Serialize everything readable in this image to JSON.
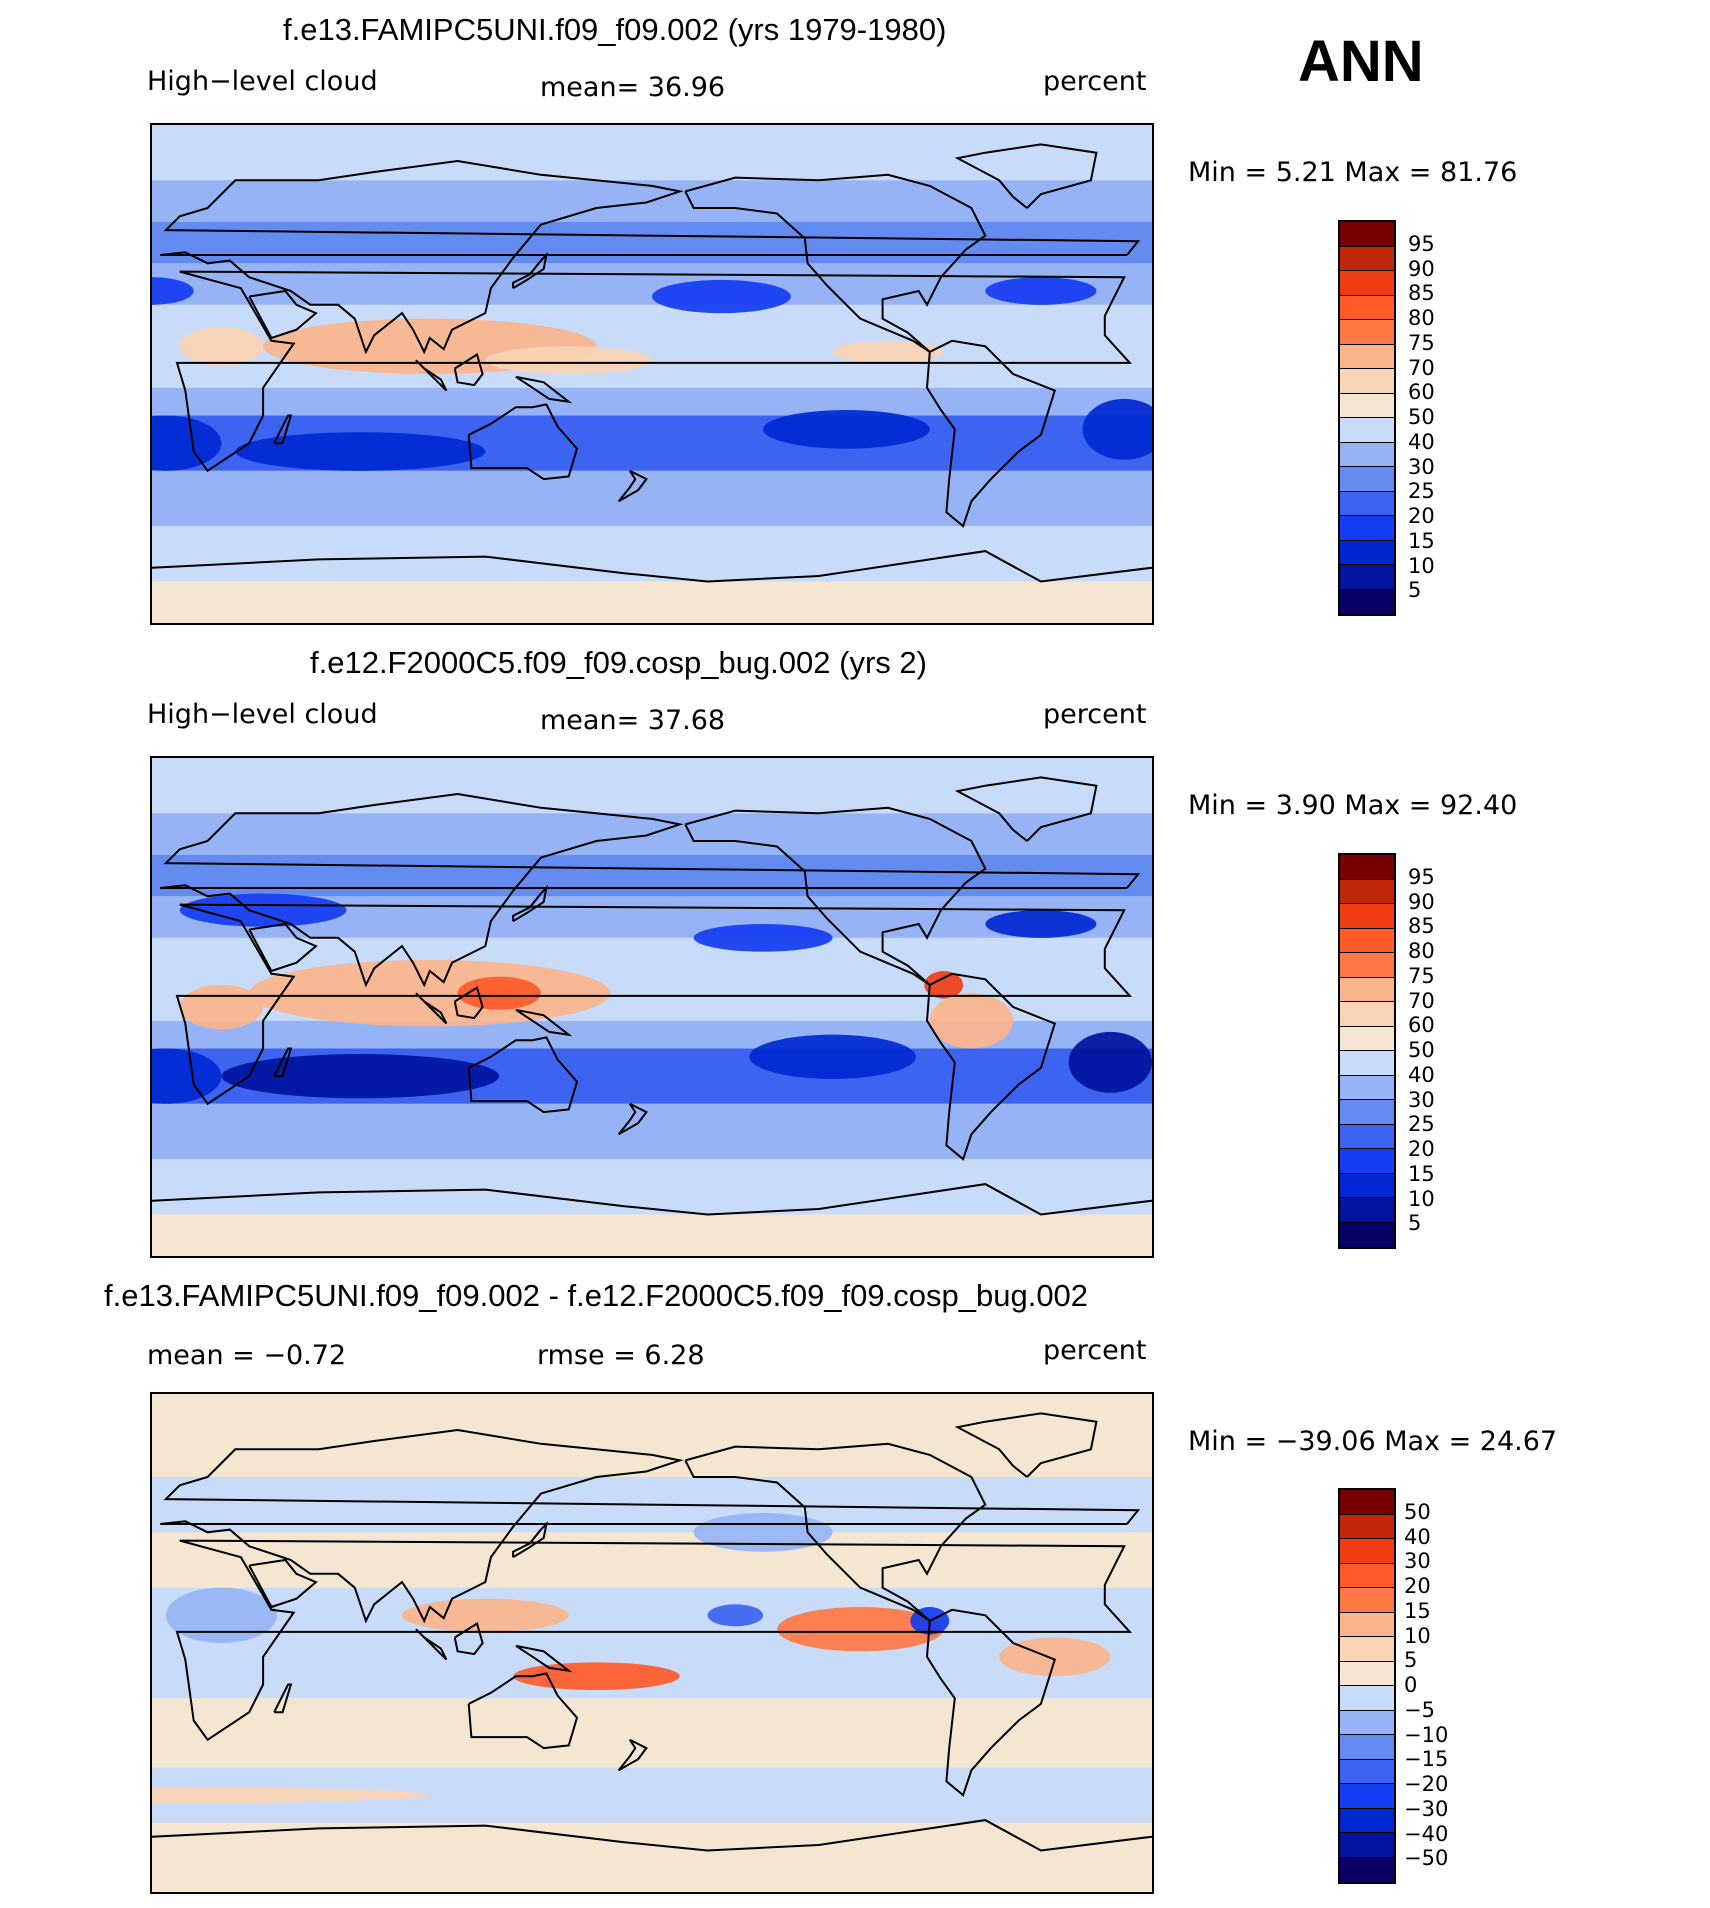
{
  "season": "ANN",
  "palette_abs": [
    "#080064",
    "#0014a0",
    "#0028d2",
    "#143cf0",
    "#3c64f0",
    "#648cf0",
    "#96b4f5",
    "#c8dcfa",
    "#f5e6d2",
    "#fad2b4",
    "#fab48c",
    "#ff7846",
    "#ff5a28",
    "#f03c14",
    "#be2808",
    "#780000"
  ],
  "palette_diff": [
    "#080064",
    "#0014a0",
    "#0028d2",
    "#143cf0",
    "#3c64f0",
    "#648cf0",
    "#96b4f5",
    "#c8dcfa",
    "#f5e6d2",
    "#fad2b4",
    "#fab48c",
    "#ff7846",
    "#ff5a28",
    "#f03c14",
    "#be2808",
    "#780000"
  ],
  "panels": [
    {
      "title": "f.e13.FAMIPC5UNI.f09_f09.002 (yrs 1979-1980)",
      "left_label": "High−level  cloud",
      "center_label": "mean=   36.96",
      "units": "percent",
      "minmax": "Min  =       5.21  Max  =     81.76",
      "colorbar_ticks": [
        "95",
        "90",
        "85",
        "80",
        "75",
        "70",
        "60",
        "50",
        "40",
        "30",
        "25",
        "20",
        "15",
        "10",
        "5"
      ],
      "bands": [
        {
          "lat": 10,
          "lon": 100,
          "w": 120,
          "h": 20,
          "c": 10
        },
        {
          "lat": 5,
          "lon": 150,
          "w": 60,
          "h": 10,
          "c": 9
        },
        {
          "lat": 8,
          "lon": -95,
          "w": 40,
          "h": 8,
          "c": 9
        },
        {
          "lat": 10,
          "lon": 25,
          "w": 30,
          "h": 14,
          "c": 9
        },
        {
          "lat": -28,
          "lon": 75,
          "w": 90,
          "h": 14,
          "c": 2
        },
        {
          "lat": -25,
          "lon": 5,
          "w": 40,
          "h": 20,
          "c": 2
        },
        {
          "lat": -20,
          "lon": -110,
          "w": 60,
          "h": 14,
          "c": 2
        },
        {
          "lat": -20,
          "lon": -10,
          "w": 30,
          "h": 22,
          "c": 2
        },
        {
          "lat": 28,
          "lon": -155,
          "w": 50,
          "h": 12,
          "c": 3
        },
        {
          "lat": 30,
          "lon": 0,
          "w": 30,
          "h": 10,
          "c": 3
        },
        {
          "lat": 30,
          "lon": -40,
          "w": 40,
          "h": 10,
          "c": 3
        }
      ]
    },
    {
      "title": "f.e12.F2000C5.f09_f09.cosp_bug.002 (yrs 2)",
      "left_label": "High−level  cloud",
      "center_label": "mean=   37.68",
      "units": "percent",
      "minmax": "Min  =       3.90  Max  =     92.40",
      "colorbar_ticks": [
        "95",
        "90",
        "85",
        "80",
        "75",
        "70",
        "60",
        "50",
        "40",
        "30",
        "25",
        "20",
        "15",
        "10",
        "5"
      ],
      "bands": [
        {
          "lat": 5,
          "lon": 100,
          "w": 130,
          "h": 24,
          "c": 10
        },
        {
          "lat": 5,
          "lon": 125,
          "w": 30,
          "h": 12,
          "c": 12
        },
        {
          "lat": 8,
          "lon": -75,
          "w": 14,
          "h": 10,
          "c": 13
        },
        {
          "lat": -5,
          "lon": -65,
          "w": 30,
          "h": 20,
          "c": 10
        },
        {
          "lat": 0,
          "lon": 25,
          "w": 30,
          "h": 16,
          "c": 10
        },
        {
          "lat": -25,
          "lon": 75,
          "w": 100,
          "h": 16,
          "c": 1
        },
        {
          "lat": -25,
          "lon": 5,
          "w": 40,
          "h": 20,
          "c": 2
        },
        {
          "lat": -18,
          "lon": -115,
          "w": 60,
          "h": 16,
          "c": 2
        },
        {
          "lat": -20,
          "lon": -15,
          "w": 30,
          "h": 22,
          "c": 1
        },
        {
          "lat": 25,
          "lon": -140,
          "w": 50,
          "h": 10,
          "c": 3
        },
        {
          "lat": 30,
          "lon": -40,
          "w": 40,
          "h": 10,
          "c": 2
        },
        {
          "lat": 35,
          "lon": 40,
          "w": 60,
          "h": 12,
          "c": 3
        }
      ]
    },
    {
      "title": "f.e13.FAMIPC5UNI.f09_f09.002 - f.e12.F2000C5.f09_f09.cosp_bug.002",
      "left_label": "mean  =     −0.72",
      "center_label": "rmse  =       6.28",
      "units": "percent",
      "minmax": "Min  =  −39.06  Max  =     24.67",
      "colorbar_ticks": [
        "50",
        "40",
        "30",
        "20",
        "15",
        "10",
        "5",
        "0",
        "−5",
        "−10",
        "−15",
        "−20",
        "−30",
        "−40",
        "−50"
      ],
      "bands": [
        {
          "lat": -12,
          "lon": 160,
          "w": 60,
          "h": 10,
          "c": 12
        },
        {
          "lat": 10,
          "lon": 120,
          "w": 60,
          "h": 12,
          "c": 10
        },
        {
          "lat": 5,
          "lon": -105,
          "w": 60,
          "h": 16,
          "c": 11
        },
        {
          "lat": -5,
          "lon": -35,
          "w": 40,
          "h": 14,
          "c": 10
        },
        {
          "lat": 8,
          "lon": -80,
          "w": 14,
          "h": 10,
          "c": 3
        },
        {
          "lat": 10,
          "lon": -150,
          "w": 20,
          "h": 8,
          "c": 4
        },
        {
          "lat": 40,
          "lon": -140,
          "w": 50,
          "h": 14,
          "c": 6
        },
        {
          "lat": 10,
          "lon": 25,
          "w": 40,
          "h": 20,
          "c": 6
        },
        {
          "lat": -55,
          "lon": 0,
          "w": 200,
          "h": 6,
          "c": 9
        }
      ]
    }
  ]
}
